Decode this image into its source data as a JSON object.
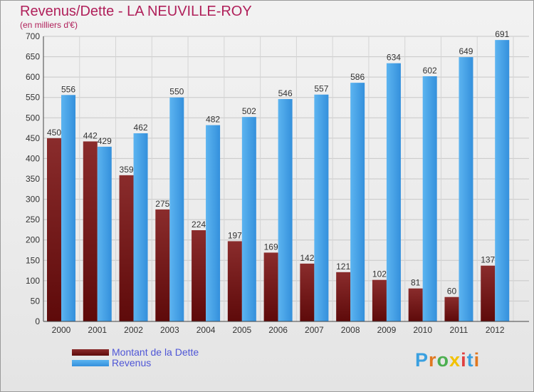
{
  "title": "Revenus/Dette - LA NEUVILLE-ROY",
  "subtitle": "(en milliers d'€)",
  "colors": {
    "dette": "#6e1010",
    "revenus": "#3f9fe8",
    "title": "#b0205a",
    "legend_text": "#4f56d6"
  },
  "logo": {
    "text": "Proxiti",
    "letter_colors": [
      "#3aa0e0",
      "#e07820",
      "#4caf50",
      "#f2c200",
      "#e04040",
      "#3aa0e0",
      "#e07820"
    ]
  },
  "chart_data": {
    "type": "bar",
    "title": "Revenus/Dette - LA NEUVILLE-ROY",
    "subtitle": "(en milliers d'€)",
    "categories": [
      "2000",
      "2001",
      "2002",
      "2003",
      "2004",
      "2005",
      "2006",
      "2007",
      "2008",
      "2009",
      "2010",
      "2011",
      "2012"
    ],
    "series": [
      {
        "name": "Montant de la Dette",
        "color": "#6e1010",
        "values": [
          450,
          442,
          359,
          275,
          224,
          197,
          169,
          142,
          121,
          102,
          81,
          60,
          137
        ]
      },
      {
        "name": "Revenus",
        "color": "#3f9fe8",
        "values": [
          556,
          429,
          462,
          550,
          482,
          502,
          546,
          557,
          586,
          634,
          602,
          649,
          691
        ]
      }
    ],
    "ylim": [
      0,
      700
    ],
    "yticks": [
      0,
      50,
      100,
      150,
      200,
      250,
      300,
      350,
      400,
      450,
      500,
      550,
      600,
      650,
      700
    ],
    "grid": true,
    "legend_position": "bottom-left"
  }
}
